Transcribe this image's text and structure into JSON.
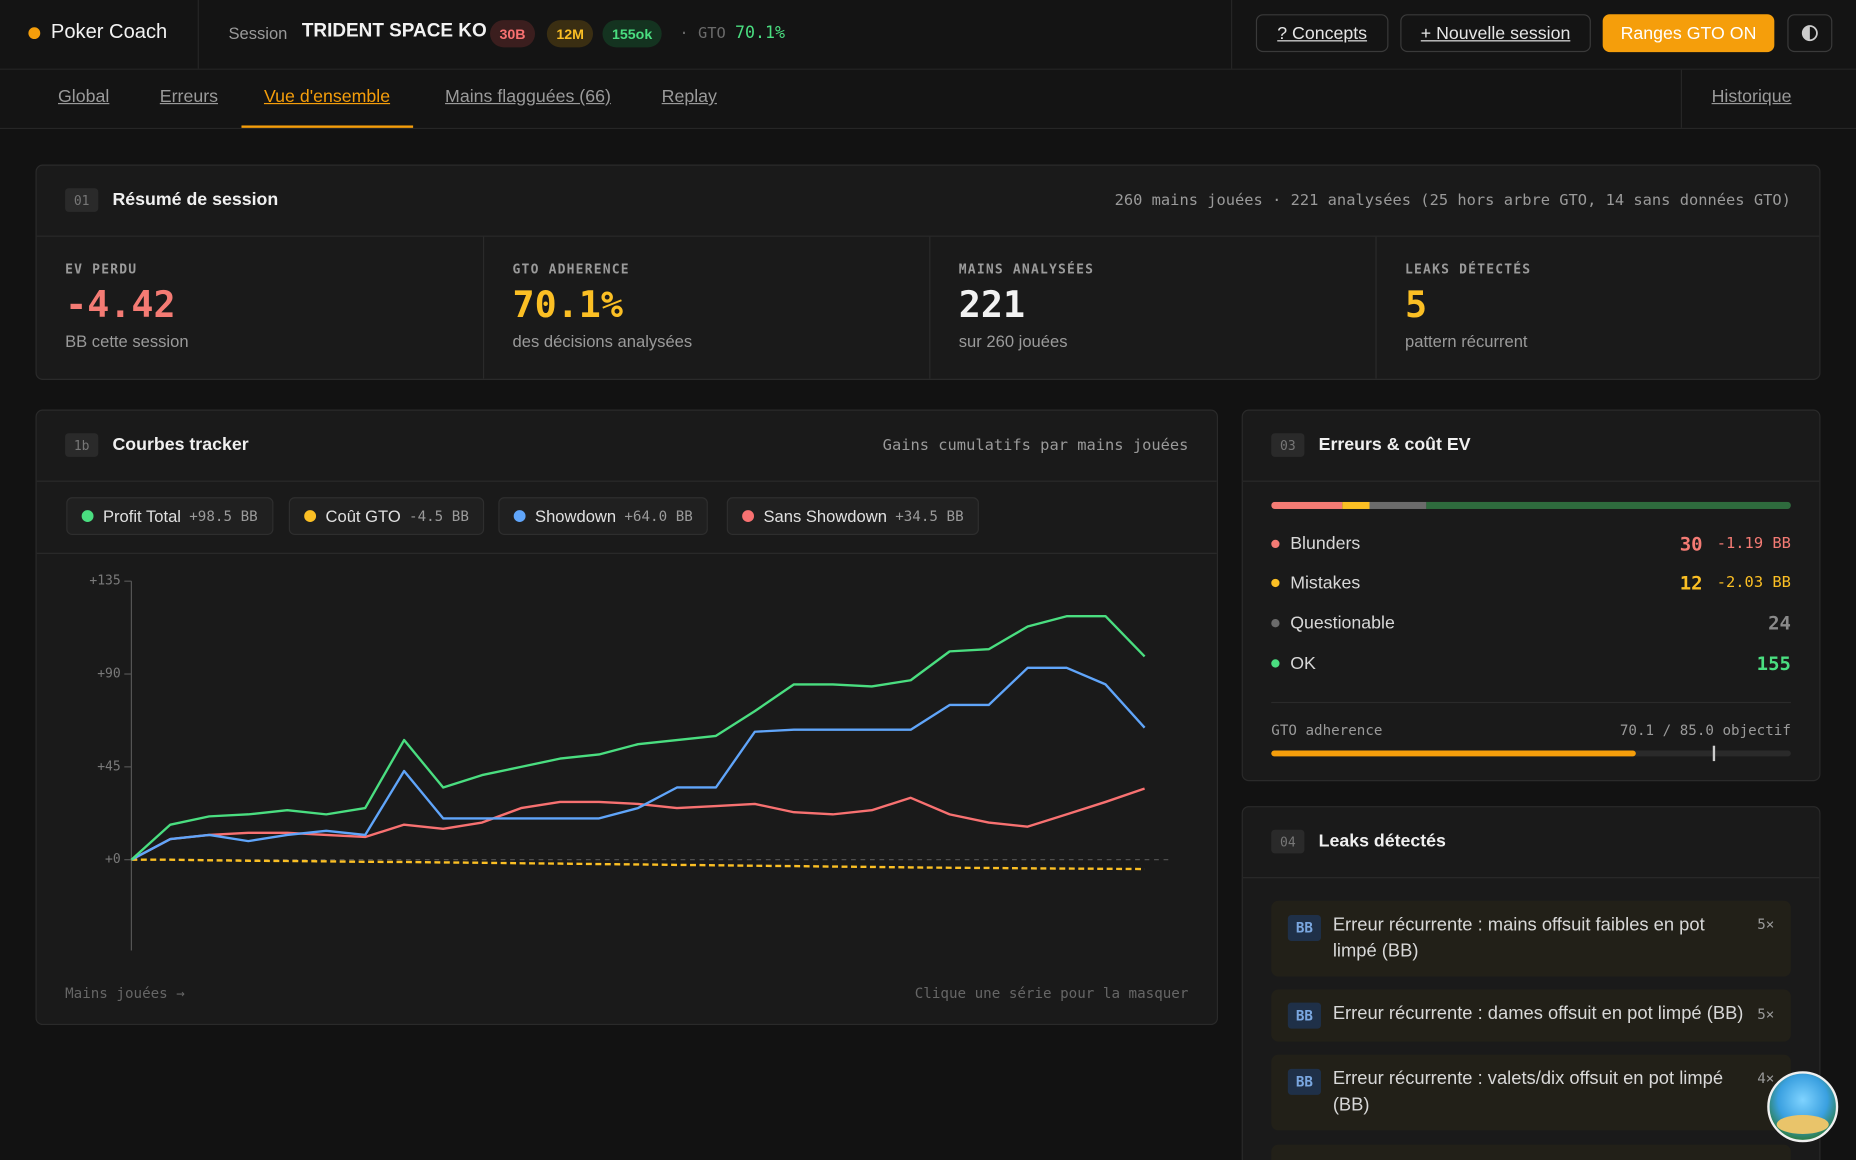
{
  "header": {
    "brand": "Poker Coach",
    "session_label": "Session",
    "session_name": "TRIDENT SPACE KO",
    "badges": [
      {
        "text": "30B",
        "color": "#f87171",
        "bg": "#3b1e1e"
      },
      {
        "text": "12M",
        "color": "#fbbf24",
        "bg": "#3a2e12"
      },
      {
        "text": "155ok",
        "color": "#4ade80",
        "bg": "#143320"
      }
    ],
    "gto_label": "· GTO",
    "gto_value": "70.1%",
    "buttons": [
      "? Concepts",
      "+ Nouvelle session",
      "Ranges GTO ON"
    ]
  },
  "tabs": {
    "items": [
      "Global",
      "Erreurs",
      "Vue d'ensemble",
      "Mains flagguées (66)",
      "Replay"
    ],
    "active": 2,
    "right": "Historique"
  },
  "summary": {
    "num": "01",
    "title": "Résumé de session",
    "note": "260 mains jouées · 221 analysées (25 hors arbre GTO, 14 sans données GTO)",
    "stats": [
      {
        "label": "EV PERDU",
        "value": "-4.42",
        "sub": "BB cette session",
        "color": "#f47b74"
      },
      {
        "label": "GTO ADHERENCE",
        "value": "70.1%",
        "sub": "des décisions analysées",
        "color": "#fbbf24"
      },
      {
        "label": "MAINS ANALYSÉES",
        "value": "221",
        "sub": "sur 260 jouées",
        "color": "#f2f2f2"
      },
      {
        "label": "LEAKS DÉTECTÉS",
        "value": "5",
        "sub": "pattern récurrent",
        "color": "#fbbf24"
      }
    ]
  },
  "tracker": {
    "num": "1b",
    "title": "Courbes tracker",
    "note": "Gains cumulatifs par mains jouées",
    "hint": "Clique une série pour la masquer"
  },
  "chart_data": {
    "type": "line",
    "x_label": "Mains jouées →",
    "x": [
      0,
      10,
      20,
      30,
      40,
      50,
      60,
      70,
      80,
      90,
      100,
      110,
      120,
      130,
      140,
      150,
      160,
      170,
      180,
      190,
      200,
      210,
      220,
      230,
      240,
      250,
      260
    ],
    "xlim": [
      0,
      267
    ],
    "ylim": [
      -44,
      135
    ],
    "yticks": [
      {
        "value": 0,
        "label": "+0"
      },
      {
        "value": 45,
        "label": "+45"
      },
      {
        "value": 90,
        "label": "+90"
      },
      {
        "value": 135,
        "label": "+135"
      }
    ],
    "zero_line": true,
    "series": [
      {
        "name": "Profit Total",
        "total_label": "+98.5 BB",
        "color": "#4ade80",
        "style": "solid",
        "values": [
          0,
          17,
          21,
          22,
          24,
          22,
          25,
          58,
          35,
          41,
          45,
          49,
          51,
          56,
          58,
          60,
          72,
          85,
          85,
          84,
          87,
          101,
          102,
          113,
          118,
          118,
          98.5
        ]
      },
      {
        "name": "Coût GTO",
        "total_label": "-4.5 BB",
        "color": "#fbbf24",
        "style": "dashed",
        "values": [
          0,
          0,
          -0.3,
          -0.5,
          -0.6,
          -0.8,
          -1,
          -1.1,
          -1.3,
          -1.5,
          -1.7,
          -1.9,
          -2.1,
          -2.3,
          -2.5,
          -2.7,
          -2.9,
          -3.1,
          -3.3,
          -3.5,
          -3.7,
          -3.9,
          -4,
          -4.2,
          -4.3,
          -4.4,
          -4.5
        ]
      },
      {
        "name": "Showdown",
        "total_label": "+64.0 BB",
        "color": "#60a5fa",
        "style": "solid",
        "values": [
          0,
          10,
          12,
          9,
          12,
          14,
          12,
          43,
          20,
          20,
          20,
          20,
          20,
          25,
          35,
          35,
          62,
          63,
          63,
          63,
          63,
          75,
          75,
          93,
          93,
          85,
          64
        ]
      },
      {
        "name": "Sans Showdown",
        "total_label": "+34.5 BB",
        "color": "#f87171",
        "style": "solid",
        "values": [
          0,
          10,
          12,
          13,
          13,
          12,
          11,
          17,
          15,
          18,
          25,
          28,
          28,
          27,
          25,
          26,
          27,
          23,
          22,
          24,
          30,
          22,
          18,
          16,
          22,
          28,
          34.5
        ]
      }
    ]
  },
  "errors": {
    "num": "03",
    "title": "Erreurs & coût EV",
    "rows": [
      {
        "name": "Blunders",
        "count": 30,
        "ev": "-1.19 BB",
        "color": "#f47b74"
      },
      {
        "name": "Mistakes",
        "count": 12,
        "ev": "-2.03 BB",
        "color": "#fbbf24"
      },
      {
        "name": "Questionable",
        "count": 24,
        "color": "#6b6b6b"
      },
      {
        "name": "OK",
        "count": 155,
        "color": "#4ade80",
        "bar_color": "#2e6b3d"
      }
    ],
    "adherence": {
      "label": "GTO adherence",
      "text": "70.1 / 85.0 objectif",
      "value": 70.1,
      "target": 85.0
    }
  },
  "leaks": {
    "num": "04",
    "title": "Leaks détectés",
    "items": [
      {
        "tag": "BB",
        "text": "Erreur récurrente : mains offsuit faibles en pot limpé (BB)",
        "count": "5×"
      },
      {
        "tag": "BB",
        "text": "Erreur récurrente : dames offsuit en pot limpé (BB)",
        "count": "5×"
      },
      {
        "tag": "BB",
        "text": "Erreur récurrente : valets/dix offsuit en pot limpé (BB)",
        "count": "4×"
      }
    ]
  }
}
